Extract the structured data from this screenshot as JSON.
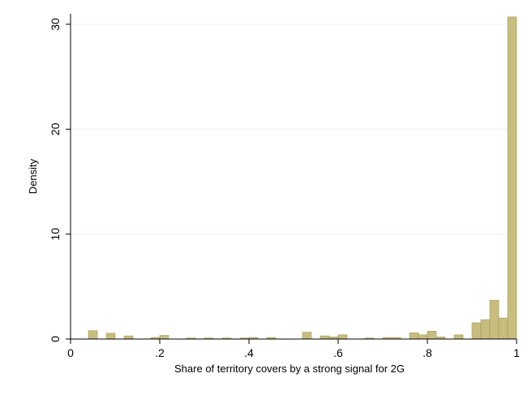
{
  "chart_data": {
    "type": "bar",
    "subtype": "histogram",
    "xlabel": "Share of territory covers by a strong signal for 2G",
    "ylabel": "Density",
    "xlim": [
      0,
      1
    ],
    "ylim": [
      0,
      31
    ],
    "x_ticks": [
      {
        "value": 0,
        "label": "0"
      },
      {
        "value": 0.2,
        "label": ".2"
      },
      {
        "value": 0.4,
        "label": ".4"
      },
      {
        "value": 0.6,
        "label": ".6"
      },
      {
        "value": 0.8,
        "label": ".8"
      },
      {
        "value": 1,
        "label": "1"
      }
    ],
    "y_ticks": [
      {
        "value": 0,
        "label": "0"
      },
      {
        "value": 10,
        "label": "10"
      },
      {
        "value": 20,
        "label": "20"
      },
      {
        "value": 30,
        "label": "30"
      }
    ],
    "grid": true,
    "bin_width": 0.02,
    "bins": [
      {
        "x_start": 0.04,
        "x_end": 0.06,
        "density": 0.8
      },
      {
        "x_start": 0.08,
        "x_end": 0.1,
        "density": 0.55
      },
      {
        "x_start": 0.12,
        "x_end": 0.14,
        "density": 0.3
      },
      {
        "x_start": 0.18,
        "x_end": 0.2,
        "density": 0.15
      },
      {
        "x_start": 0.2,
        "x_end": 0.22,
        "density": 0.35
      },
      {
        "x_start": 0.26,
        "x_end": 0.28,
        "density": 0.1
      },
      {
        "x_start": 0.3,
        "x_end": 0.32,
        "density": 0.1
      },
      {
        "x_start": 0.34,
        "x_end": 0.36,
        "density": 0.1
      },
      {
        "x_start": 0.38,
        "x_end": 0.4,
        "density": 0.1
      },
      {
        "x_start": 0.4,
        "x_end": 0.42,
        "density": 0.15
      },
      {
        "x_start": 0.44,
        "x_end": 0.46,
        "density": 0.15
      },
      {
        "x_start": 0.52,
        "x_end": 0.54,
        "density": 0.65
      },
      {
        "x_start": 0.56,
        "x_end": 0.58,
        "density": 0.3
      },
      {
        "x_start": 0.58,
        "x_end": 0.6,
        "density": 0.2
      },
      {
        "x_start": 0.6,
        "x_end": 0.62,
        "density": 0.4
      },
      {
        "x_start": 0.66,
        "x_end": 0.68,
        "density": 0.1
      },
      {
        "x_start": 0.7,
        "x_end": 0.72,
        "density": 0.15
      },
      {
        "x_start": 0.72,
        "x_end": 0.74,
        "density": 0.15
      },
      {
        "x_start": 0.76,
        "x_end": 0.78,
        "density": 0.6
      },
      {
        "x_start": 0.78,
        "x_end": 0.8,
        "density": 0.4
      },
      {
        "x_start": 0.8,
        "x_end": 0.82,
        "density": 0.75
      },
      {
        "x_start": 0.82,
        "x_end": 0.84,
        "density": 0.2
      },
      {
        "x_start": 0.86,
        "x_end": 0.88,
        "density": 0.4
      },
      {
        "x_start": 0.9,
        "x_end": 0.92,
        "density": 1.55
      },
      {
        "x_start": 0.92,
        "x_end": 0.94,
        "density": 1.85
      },
      {
        "x_start": 0.94,
        "x_end": 0.96,
        "density": 3.7
      },
      {
        "x_start": 0.96,
        "x_end": 0.98,
        "density": 2.0
      },
      {
        "x_start": 0.98,
        "x_end": 1.0,
        "density": 30.7
      }
    ],
    "colors": {
      "bar_fill": "#c6bd7f",
      "bar_stroke": "#a49a5e",
      "gridline": "#eaf2f3",
      "axis": "#000000",
      "background": "#ffffff"
    }
  }
}
